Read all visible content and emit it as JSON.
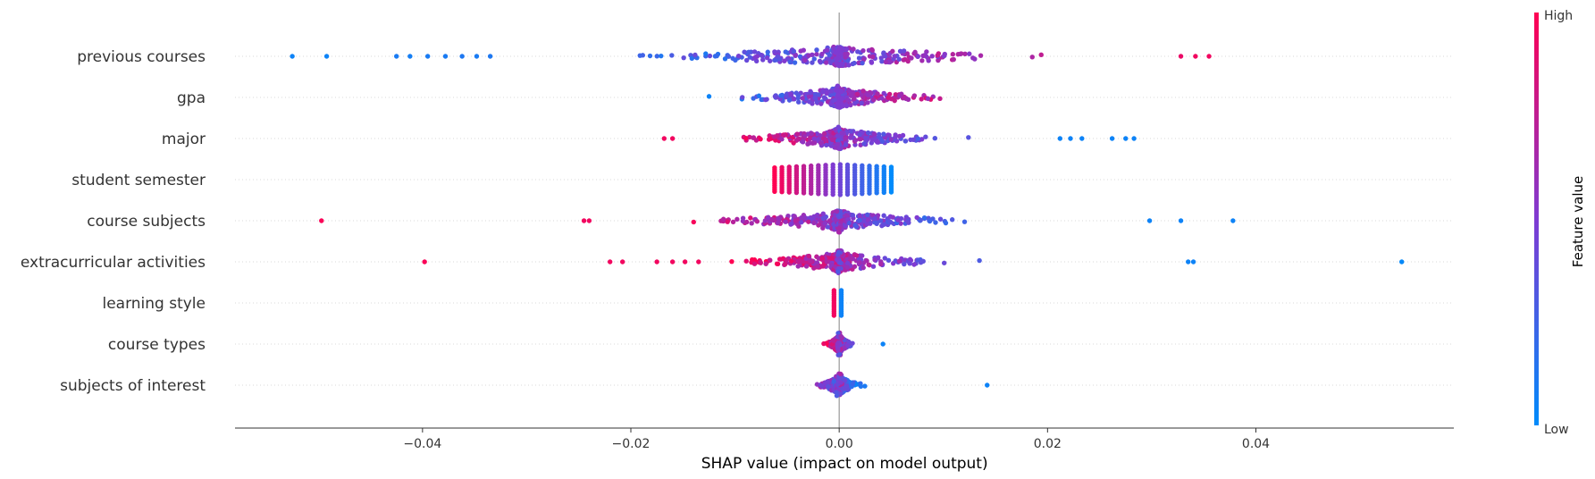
{
  "chart_data": {
    "type": "scatter",
    "subtype": "shap-beeswarm",
    "title": "",
    "xlabel": "SHAP value (impact on model output)",
    "xlim": [
      -0.058,
      0.059
    ],
    "xticks": [
      -0.04,
      -0.02,
      0.0,
      0.02,
      0.04
    ],
    "xtick_labels": [
      "−0.04",
      "−0.02",
      "0.00",
      "0.02",
      "0.04"
    ],
    "colorbar": {
      "title": "Feature value",
      "high_label": "High",
      "low_label": "Low",
      "low_color": "#008bfb",
      "mid_color": "#7f3bd2",
      "high_color": "#ff0052"
    },
    "features": [
      {
        "name": "previous courses",
        "range": [
          -0.031,
          0.036
        ],
        "color_trend": "increasing",
        "outliers": [
          {
            "x": -0.0525,
            "v": 0.05
          },
          {
            "x": -0.0492,
            "v": 0.05
          },
          {
            "x": -0.0425,
            "v": 0.1
          },
          {
            "x": -0.0412,
            "v": 0.08
          },
          {
            "x": -0.0395,
            "v": 0.1
          },
          {
            "x": -0.0378,
            "v": 0.1
          },
          {
            "x": -0.0362,
            "v": 0.12
          },
          {
            "x": -0.0348,
            "v": 0.1
          },
          {
            "x": -0.0335,
            "v": 0.12
          },
          {
            "x": 0.0355,
            "v": 0.95
          },
          {
            "x": 0.0342,
            "v": 0.95
          },
          {
            "x": 0.0328,
            "v": 0.92
          }
        ]
      },
      {
        "name": "gpa",
        "range": [
          -0.0178,
          0.0168
        ],
        "color_trend": "increasing",
        "outliers": []
      },
      {
        "name": "major",
        "range": [
          -0.0145,
          0.0195
        ],
        "color_trend": "decreasing",
        "outliers": [
          {
            "x": -0.0168,
            "v": 0.95
          },
          {
            "x": -0.016,
            "v": 0.95
          },
          {
            "x": 0.0212,
            "v": 0.05
          },
          {
            "x": 0.0222,
            "v": 0.05
          },
          {
            "x": 0.0233,
            "v": 0.05
          },
          {
            "x": 0.0262,
            "v": 0.05
          },
          {
            "x": 0.0275,
            "v": 0.05
          },
          {
            "x": 0.0283,
            "v": 0.05
          }
        ]
      },
      {
        "name": "student semester",
        "columns": [
          -0.0062,
          -0.0055,
          -0.0048,
          -0.0041,
          -0.0034,
          -0.0027,
          -0.002,
          -0.0013,
          -0.0006,
          0.0001,
          0.0008,
          0.0015,
          0.0022,
          0.0029,
          0.0036,
          0.0043,
          0.005
        ],
        "color_trend": "decreasing",
        "outliers": []
      },
      {
        "name": "course subjects",
        "range": [
          -0.021,
          0.022
        ],
        "color_trend": "decreasing",
        "outliers": [
          {
            "x": -0.0497,
            "v": 0.98
          },
          {
            "x": -0.0245,
            "v": 0.95
          },
          {
            "x": -0.024,
            "v": 0.95
          },
          {
            "x": 0.0298,
            "v": 0.05
          },
          {
            "x": 0.0328,
            "v": 0.05
          },
          {
            "x": 0.0378,
            "v": 0.05
          }
        ]
      },
      {
        "name": "extracurricular activities",
        "range": [
          -0.0115,
          0.0225
        ],
        "color_trend": "decreasing",
        "outliers": [
          {
            "x": -0.0398,
            "v": 0.98
          },
          {
            "x": -0.022,
            "v": 0.95
          },
          {
            "x": -0.0208,
            "v": 0.95
          },
          {
            "x": -0.0175,
            "v": 0.95
          },
          {
            "x": -0.016,
            "v": 0.95
          },
          {
            "x": -0.0148,
            "v": 0.95
          },
          {
            "x": -0.0135,
            "v": 0.95
          },
          {
            "x": 0.0335,
            "v": 0.05
          },
          {
            "x": 0.034,
            "v": 0.05
          },
          {
            "x": 0.054,
            "v": 0.02
          }
        ]
      },
      {
        "name": "learning style",
        "columns": [
          -0.0005,
          0.0002
        ],
        "column_colors": [
          0.95,
          0.05
        ],
        "color_trend": "decreasing",
        "outliers": []
      },
      {
        "name": "course types",
        "range": [
          -0.0015,
          0.0025
        ],
        "color_trend": "decreasing",
        "outliers": [
          {
            "x": 0.0042,
            "v": 0.05
          }
        ]
      },
      {
        "name": "subjects of interest",
        "range": [
          -0.0045,
          0.0025
        ],
        "color_trend": "decreasing",
        "outliers": [
          {
            "x": 0.0142,
            "v": 0.05
          }
        ]
      }
    ]
  }
}
